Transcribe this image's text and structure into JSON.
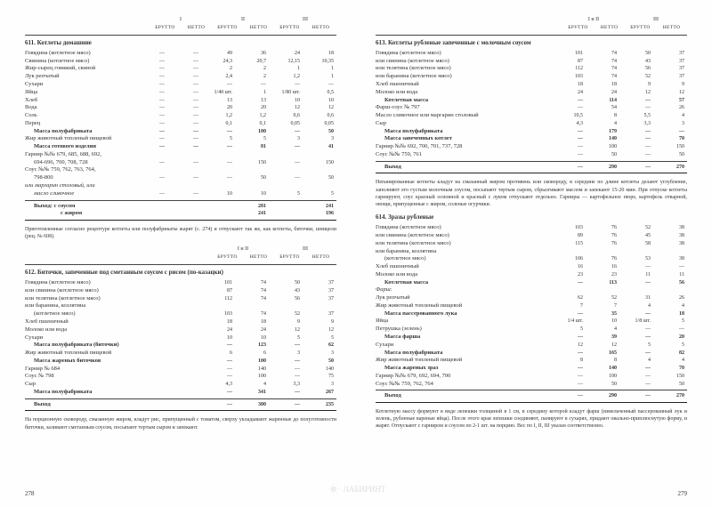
{
  "headers": {
    "groups": [
      "I",
      "II",
      "III"
    ],
    "groups2": [
      "I и II",
      "III"
    ],
    "sub": [
      "БРУТТО",
      "НЕТТО"
    ]
  },
  "page_left": {
    "num": "278",
    "r611": {
      "title": "611. Котлеты домашние",
      "rows": [
        {
          "n": "Говядина (котлетное мясо)",
          "v": [
            "—",
            "—",
            "49",
            "36",
            "24",
            "18"
          ]
        },
        {
          "n": "Свинина (котлетное мясо)",
          "v": [
            "—",
            "—",
            "24,3",
            "20,7",
            "12,15",
            "10,35"
          ]
        },
        {
          "n": "Жир-сырец говяжий, свиной",
          "v": [
            "—",
            "—",
            "2",
            "2",
            "1",
            "1"
          ]
        },
        {
          "n": "Лук репчатый",
          "v": [
            "—",
            "—",
            "2,4",
            "2",
            "1,2",
            "1"
          ]
        },
        {
          "n": "Сухари",
          "v": [
            "—",
            "—",
            "—",
            "—",
            "—",
            "—"
          ]
        },
        {
          "n": "Яйца",
          "v": [
            "—",
            "—",
            "1/40 шт.",
            "1",
            "1/80 шт.",
            "0,5"
          ]
        },
        {
          "n": "Хлеб",
          "v": [
            "—",
            "—",
            "13",
            "13",
            "10",
            "10"
          ]
        },
        {
          "n": "Вода",
          "v": [
            "—",
            "—",
            "20",
            "20",
            "12",
            "12"
          ]
        },
        {
          "n": "Соль",
          "v": [
            "—",
            "—",
            "1,2",
            "1,2",
            "0,6",
            "0,6"
          ]
        },
        {
          "n": "Перец",
          "v": [
            "—",
            "—",
            "0,1",
            "0,1",
            "0,05",
            "0,05"
          ]
        }
      ],
      "mass_semi": {
        "n": "Масса полуфабриката",
        "v": [
          "—",
          "—",
          "—",
          "100",
          "—",
          "50"
        ]
      },
      "rows2": [
        {
          "n": "Жир животный топленый пищевой",
          "v": [
            "—",
            "—",
            "5",
            "5",
            "3",
            "3"
          ]
        }
      ],
      "mass_ready": {
        "n": "Масса готового изделия",
        "v": [
          "—",
          "—",
          "—",
          "81",
          "—",
          "41"
        ]
      },
      "garnir": {
        "n": "Гарнир №№ 679, 685, 688, 692,",
        "v": [
          "",
          "",
          "",
          "",
          "",
          ""
        ]
      },
      "garnir2": {
        "n": "694-696, 700, 708, 728",
        "v": [
          "—",
          "—",
          "—",
          "150",
          "—",
          "150"
        ]
      },
      "sauce": {
        "n": "Соус №№ 759, 762, 763, 764,",
        "v": [
          "",
          "",
          "",
          "",
          "",
          ""
        ]
      },
      "sauce2": {
        "n": "798-800",
        "v": [
          "—",
          "—",
          "—",
          "50",
          "—",
          "50"
        ]
      },
      "marg": {
        "n": "или маргарин столовый, или",
        "v": [
          "",
          "",
          "",
          "",
          "",
          ""
        ]
      },
      "marg2": {
        "n": "масло сливочное",
        "v": [
          "—",
          "—",
          "10",
          "10",
          "5",
          "5"
        ]
      },
      "output1": {
        "n": "Выход: с соусом",
        "v": [
          "",
          "",
          "",
          "281",
          "",
          "241"
        ]
      },
      "output2": {
        "n": "с жиром",
        "v": [
          "",
          "",
          "",
          "241",
          "",
          "196"
        ]
      }
    },
    "note611": "Приготовленные согласно рецептуре котлеты или полуфабрикаты жарят (с. 274) и отпускают так же, как котлеты, биточки, шницели (рец. № 608).",
    "r612": {
      "title": "612. Биточки, запеченные под сметанным соусом с рисом (по-казацки)",
      "rows": [
        {
          "n": "Говядина (котлетное мясо)",
          "v": [
            "101",
            "74",
            "50",
            "37"
          ]
        },
        {
          "n": "или свинина (котлетное мясо)",
          "v": [
            "87",
            "74",
            "43",
            "37"
          ]
        },
        {
          "n": "или телятина (котлетное мясо)",
          "v": [
            "112",
            "74",
            "56",
            "37"
          ]
        },
        {
          "n": "или баранина, козлятина",
          "v": [
            "",
            "",
            "",
            ""
          ]
        },
        {
          "n": "(котлетное мясо)",
          "v": [
            "103",
            "74",
            "52",
            "37"
          ],
          "indent": true
        },
        {
          "n": "Хлеб пшеничный",
          "v": [
            "18",
            "18",
            "9",
            "9"
          ]
        },
        {
          "n": "Молоко или вода",
          "v": [
            "24",
            "24",
            "12",
            "12"
          ]
        },
        {
          "n": "Сухари",
          "v": [
            "10",
            "10",
            "5",
            "5"
          ]
        }
      ],
      "mass_semi": {
        "n": "Масса полуфабриката (биточки)",
        "v": [
          "—",
          "123",
          "—",
          "62"
        ]
      },
      "rows2": [
        {
          "n": "Жир животный топленый пищевой",
          "v": [
            "6",
            "6",
            "3",
            "3"
          ]
        }
      ],
      "mass_fried": {
        "n": "Масса жареных биточков",
        "v": [
          "—",
          "100",
          "—",
          "50"
        ]
      },
      "garnir": {
        "n": "Гарнир № 684",
        "v": [
          "—",
          "140",
          "—",
          "140"
        ]
      },
      "sauce": {
        "n": "Соус № 798",
        "v": [
          "—",
          "100",
          "—",
          "75"
        ]
      },
      "cheese": {
        "n": "Сыр",
        "v": [
          "4,3",
          "4",
          "3,3",
          "3"
        ]
      },
      "mass_final": {
        "n": "Масса полуфабриката",
        "v": [
          "—",
          "341",
          "—",
          "267"
        ]
      },
      "output": {
        "n": "Выход",
        "v": [
          "—",
          "300",
          "—",
          "235"
        ]
      }
    },
    "note612": "На порционную сковороду, смазанную жиром, кладут рис, припущенный с томатом, сверху укладывают жаренные до полуготовности биточки, заливают сметанным соусом, посыпают тертым сыром и запекают."
  },
  "page_right": {
    "num": "279",
    "r613": {
      "title": "613. Котлеты рубленые запеченные с молочным соусом",
      "rows": [
        {
          "n": "Говядина (котлетное мясо)",
          "v": [
            "101",
            "74",
            "50",
            "37"
          ]
        },
        {
          "n": "или свинина (котлетное мясо)",
          "v": [
            "87",
            "74",
            "43",
            "37"
          ]
        },
        {
          "n": "или телятина (котлетное мясо)",
          "v": [
            "112",
            "74",
            "56",
            "37"
          ]
        },
        {
          "n": "или баранина (котлетное мясо)",
          "v": [
            "103",
            "74",
            "52",
            "37"
          ]
        },
        {
          "n": "Хлеб пшеничный",
          "v": [
            "18",
            "18",
            "9",
            "9"
          ]
        },
        {
          "n": "Молоко или вода",
          "v": [
            "24",
            "24",
            "12",
            "12"
          ]
        }
      ],
      "mass_kot": {
        "n": "Котлетная масса",
        "v": [
          "—",
          "114",
          "—",
          "57"
        ]
      },
      "farsh": {
        "n": "Фарш-соус № 797",
        "v": [
          "—",
          "54",
          "—",
          "26"
        ]
      },
      "butter": {
        "n": "Масло сливочное или маргарин столовый",
        "v": [
          "10,5",
          "8",
          "5,5",
          "4"
        ]
      },
      "cheese": {
        "n": "Сыр",
        "v": [
          "4,3",
          "4",
          "3,3",
          "3"
        ]
      },
      "mass_semi": {
        "n": "Масса полуфабриката",
        "v": [
          "—",
          "179",
          "—",
          "—"
        ]
      },
      "mass_baked": {
        "n": "Масса запеченных котлет",
        "v": [
          "—",
          "140",
          "—",
          "70"
        ]
      },
      "garnir": {
        "n": "Гарнир №№ 692, 700, 701, 737, 728",
        "v": [
          "—",
          "100",
          "—",
          "150"
        ]
      },
      "sauce": {
        "n": "Соус №№ 759, 761",
        "v": [
          "—",
          "50",
          "—",
          "50"
        ]
      },
      "output": {
        "n": "Выход",
        "v": [
          "—",
          "290",
          "—",
          "270"
        ]
      }
    },
    "note613": "Непанированные котлеты кладут на смазанный жиром противень или сковороду, в середине по длине котлеты делают углубление, заполняют его густым молочным соусом, посыпают тертым сыром, сбрызгивают маслом и запекают 15-20 мин. При отпуске котлеты гарнируют, соус красный основной и красный с луком отпускают отдельно. Гарниры — картофельное пюре, картофель отварной, овощи, припущенные с жиром, соленые огурчики.",
    "r614": {
      "title": "614. Зразы рубленые",
      "rows": [
        {
          "n": "Говядина (котлетное мясо)",
          "v": [
            "103",
            "76",
            "52",
            "38"
          ]
        },
        {
          "n": "или свинина (котлетное мясо)",
          "v": [
            "89",
            "76",
            "45",
            "38"
          ]
        },
        {
          "n": "или телятина (котлетное мясо)",
          "v": [
            "115",
            "76",
            "58",
            "38"
          ]
        },
        {
          "n": "или баранина, козлятина",
          "v": [
            "",
            "",
            "",
            ""
          ]
        },
        {
          "n": "(котлетное мясо)",
          "v": [
            "106",
            "76",
            "53",
            "38"
          ],
          "indent": true
        },
        {
          "n": "Хлеб пшеничный",
          "v": [
            "16",
            "16",
            "—",
            "—"
          ]
        },
        {
          "n": "Молоко или вода",
          "v": [
            "23",
            "23",
            "11",
            "11"
          ]
        }
      ],
      "mass_kot": {
        "n": "Котлетная масса",
        "v": [
          "—",
          "113",
          "—",
          "56"
        ]
      },
      "farsh_hdr": {
        "n": "Фарш:",
        "v": [
          "",
          "",
          "",
          ""
        ]
      },
      "rows2": [
        {
          "n": "Лук репчатый",
          "v": [
            "62",
            "52",
            "31",
            "26"
          ]
        },
        {
          "n": "Жир животный топленый пищевой",
          "v": [
            "7",
            "7",
            "4",
            "4"
          ]
        }
      ],
      "mass_onion": {
        "n": "Масса пассерованного лука",
        "v": [
          "—",
          "35",
          "—",
          "18"
        ]
      },
      "eggs": {
        "n": "Яйца",
        "v": [
          "1/4 шт.",
          "10",
          "1/8 шт.",
          "5"
        ]
      },
      "parsley": {
        "n": "Петрушка (зелень)",
        "v": [
          "5",
          "4",
          "—",
          "—"
        ]
      },
      "mass_farsh": {
        "n": "Масса фарша",
        "v": [
          "—",
          "39",
          "—",
          "20"
        ]
      },
      "suhari": {
        "n": "Сухари",
        "v": [
          "12",
          "12",
          "5",
          "5"
        ]
      },
      "mass_semi": {
        "n": "Масса полуфабриката",
        "v": [
          "—",
          "165",
          "—",
          "82"
        ]
      },
      "fat": {
        "n": "Жир животный топленый пищевой",
        "v": [
          "8",
          "8",
          "4",
          "4"
        ]
      },
      "mass_fried": {
        "n": "Масса жареных зраз",
        "v": [
          "—",
          "140",
          "—",
          "70"
        ]
      },
      "garnir": {
        "n": "Гарнир №№ 679, 692, 694, 700",
        "v": [
          "—",
          "100",
          "—",
          "150"
        ]
      },
      "sauce": {
        "n": "Соус №№ 759, 762, 764",
        "v": [
          "—",
          "50",
          "—",
          "50"
        ]
      },
      "output": {
        "n": "Выход",
        "v": [
          "—",
          "290",
          "—",
          "270"
        ]
      }
    },
    "note614": "Котлетную массу формуют в виде лепешки толщиной в 1 см, в середину которой кладут фарш (измельченный пассерованный лук и зелень, рубленые вареные яйца). После этого края лепешки соединяют, панируют в сухарях, придают овально-приплюснутую форму, и жарят. Отпускают с гарниром и соусом по 2-1 шт. на порцию. Вес по I, II, III указан соответственно."
  },
  "watermark": "ЛАБИРИНТ"
}
